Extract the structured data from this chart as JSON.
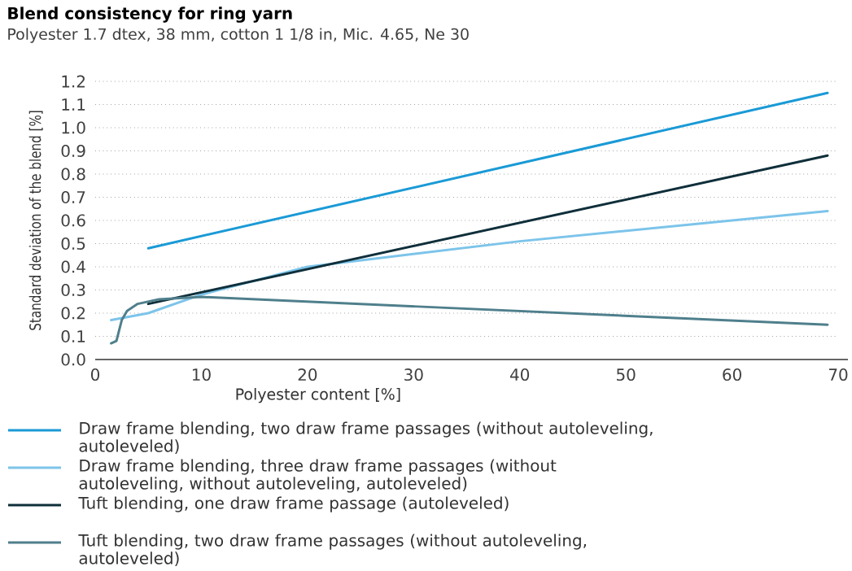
{
  "chart_data": {
    "type": "line",
    "title": "Blend consistency for ring yarn",
    "subtitle": "Polyester 1.7 dtex, 38 mm, cotton 1 1/8 in, Mic. 4.65, Ne 30",
    "xlabel": "Polyester content [%]",
    "ylabel": "Standard deviation of the blend [%]",
    "xlim": [
      0,
      70
    ],
    "xticks": [
      0,
      10,
      20,
      30,
      40,
      50,
      60,
      70
    ],
    "ylim": [
      0,
      1.2
    ],
    "yticks": [
      {
        "value": 0,
        "label": "0.0"
      },
      0.1,
      0.2,
      0.3,
      0.4,
      0.5,
      0.6,
      0.7,
      0.8,
      0.9,
      {
        "value": 1,
        "label": "1.0"
      },
      1.1,
      1.2
    ],
    "grid": "y",
    "legend": "bottom",
    "marker": "none",
    "line_style": "solid",
    "series": [
      {
        "name": "Draw frame blending, two draw frame passages (without autoleveling, autoleveled)",
        "color": "#1a9ad6",
        "x": [
          5,
          69
        ],
        "values": [
          0.48,
          1.15
        ]
      },
      {
        "name": "Draw frame blending, three draw frame passages (without autoleveling, without autoleveling, autoleveled)",
        "color": "#7cc4ea",
        "x": [
          1.5,
          5,
          10,
          20,
          40,
          69
        ],
        "values": [
          0.17,
          0.2,
          0.28,
          0.4,
          0.51,
          0.64
        ]
      },
      {
        "name": "Tuft blending, one draw frame passage (autoleveled)",
        "color": "#0f2f3a",
        "x": [
          5,
          69
        ],
        "values": [
          0.24,
          0.88
        ]
      },
      {
        "name": "Tuft blending, two draw frame passages (without autoleveling, autoleveled)",
        "color": "#4f7f8c",
        "x": [
          1.5,
          2,
          2.5,
          3,
          4,
          6,
          10,
          69
        ],
        "values": [
          0.07,
          0.08,
          0.17,
          0.21,
          0.24,
          0.26,
          0.27,
          0.15
        ]
      }
    ]
  }
}
